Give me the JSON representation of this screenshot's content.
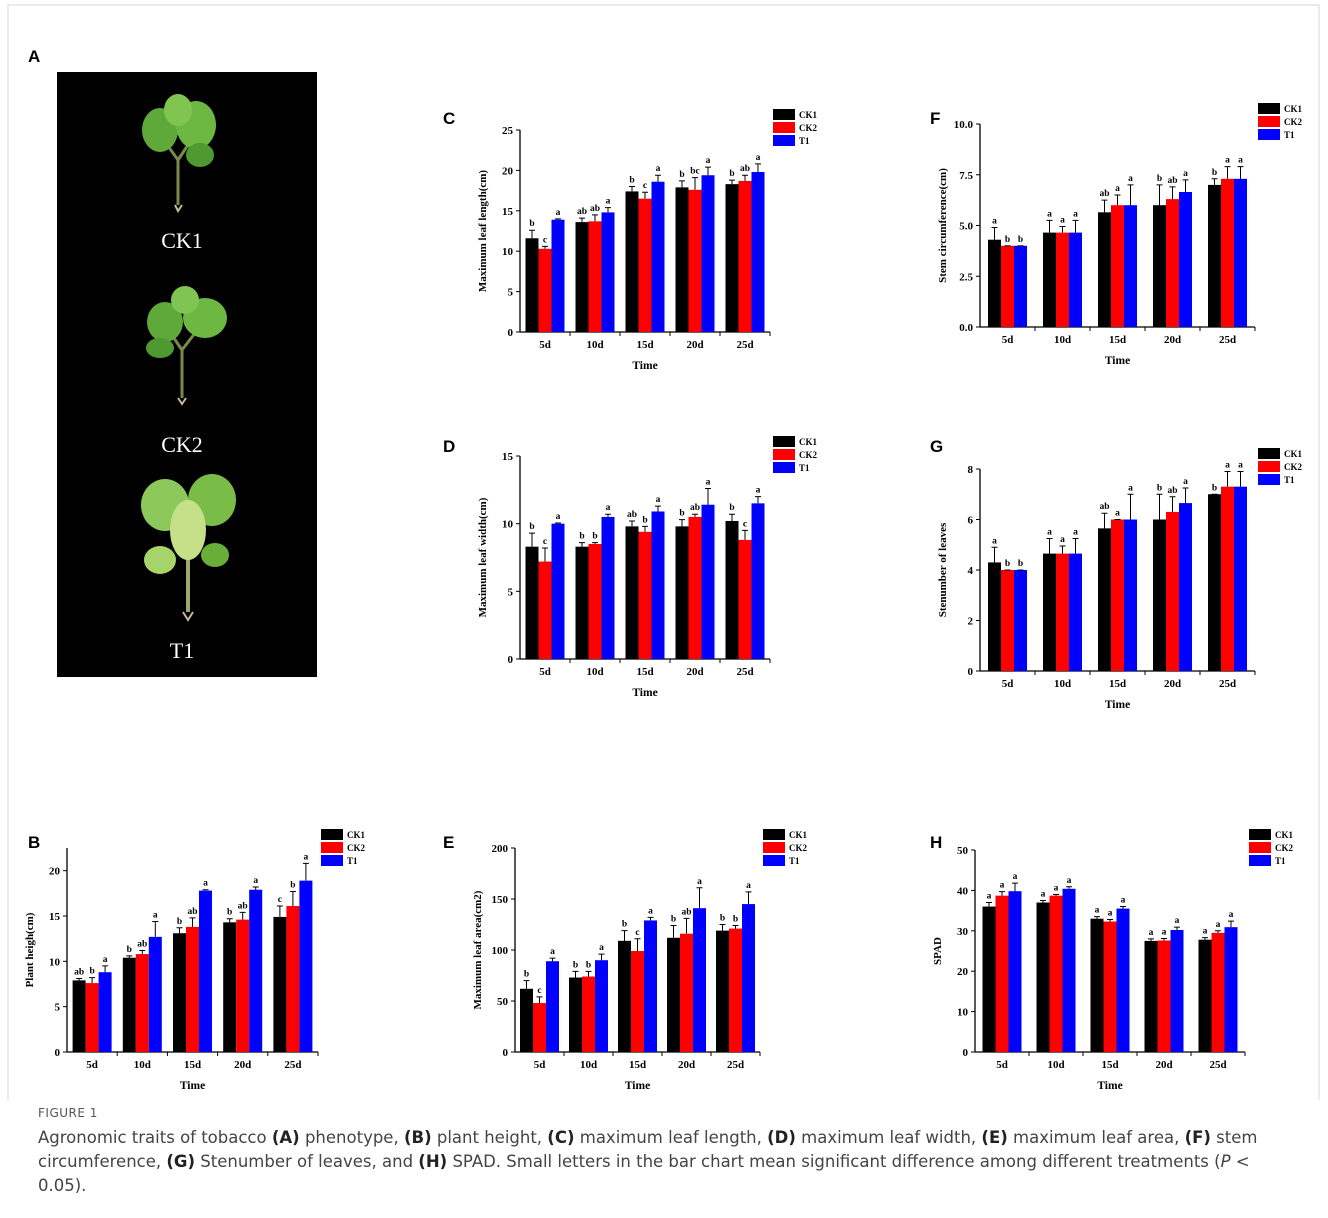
{
  "panel_a": {
    "panel": "A",
    "labels": [
      "CK1",
      "CK2",
      "T1"
    ]
  },
  "chart_data": [
    {
      "type": "bar",
      "panel": "B",
      "y_label": "Plant heigh(cm)",
      "x_label": "Time",
      "categories": [
        "5d",
        "10d",
        "15d",
        "20d",
        "25d"
      ],
      "ylim": [
        0,
        22.5
      ],
      "yticks": [
        0,
        5,
        10,
        15,
        20
      ],
      "series": [
        {
          "name": "CK1",
          "color": "#000000",
          "values": [
            7.9,
            10.4,
            13.1,
            14.3,
            14.9
          ],
          "errors": [
            0.2,
            0.2,
            0.6,
            0.4,
            1.2
          ],
          "letters": [
            "ab",
            "b",
            "b",
            "b",
            "c"
          ]
        },
        {
          "name": "CK2",
          "color": "#ff0000",
          "values": [
            7.6,
            10.8,
            13.8,
            14.6,
            16.1
          ],
          "errors": [
            0.6,
            0.4,
            1.0,
            0.8,
            1.6
          ],
          "letters": [
            "b",
            "ab",
            "ab",
            "ab",
            "b"
          ]
        },
        {
          "name": "T1",
          "color": "#0000ff",
          "values": [
            8.8,
            12.7,
            17.8,
            17.9,
            18.9
          ],
          "errors": [
            0.7,
            1.7,
            0.1,
            0.3,
            1.9
          ],
          "letters": [
            "a",
            "a",
            "a",
            "a",
            "a"
          ]
        }
      ]
    },
    {
      "type": "bar",
      "panel": "C",
      "y_label": "Maximum leaf length(cm)",
      "x_label": "Time",
      "categories": [
        "5d",
        "10d",
        "15d",
        "20d",
        "25d"
      ],
      "ylim": [
        0,
        25
      ],
      "yticks": [
        0,
        5,
        10,
        15,
        20,
        25
      ],
      "series": [
        {
          "name": "CK1",
          "color": "#000000",
          "values": [
            11.6,
            13.6,
            17.4,
            17.9,
            18.3
          ],
          "errors": [
            1.0,
            0.5,
            0.6,
            0.8,
            0.5
          ],
          "letters": [
            "b",
            "ab",
            "b",
            "b",
            "b"
          ]
        },
        {
          "name": "CK2",
          "color": "#ff0000",
          "values": [
            10.3,
            13.7,
            16.5,
            17.6,
            18.7
          ],
          "errors": [
            0.3,
            0.8,
            0.8,
            1.5,
            0.7
          ],
          "letters": [
            "c",
            "ab",
            "c",
            "bc",
            "ab"
          ]
        },
        {
          "name": "T1",
          "color": "#0000ff",
          "values": [
            13.9,
            14.8,
            18.6,
            19.4,
            19.8
          ],
          "errors": [
            0.1,
            0.6,
            0.8,
            1.0,
            1.0
          ],
          "letters": [
            "a",
            "a",
            "a",
            "a",
            "a"
          ]
        }
      ]
    },
    {
      "type": "bar",
      "panel": "D",
      "y_label": "Maximum leaf width(cm)",
      "x_label": "Time",
      "categories": [
        "5d",
        "10d",
        "15d",
        "20d",
        "25d"
      ],
      "ylim": [
        0,
        15
      ],
      "yticks": [
        0,
        5,
        10,
        15
      ],
      "series": [
        {
          "name": "CK1",
          "color": "#000000",
          "values": [
            8.3,
            8.3,
            9.8,
            9.8,
            10.2
          ],
          "errors": [
            1.0,
            0.3,
            0.4,
            0.5,
            0.5
          ],
          "letters": [
            "b",
            "b",
            "ab",
            "b",
            "b"
          ]
        },
        {
          "name": "CK2",
          "color": "#ff0000",
          "values": [
            7.2,
            8.5,
            9.4,
            10.5,
            8.8
          ],
          "errors": [
            1.0,
            0.1,
            0.4,
            0.2,
            0.7
          ],
          "letters": [
            "c",
            "b",
            "b",
            "ab",
            "c"
          ]
        },
        {
          "name": "T1",
          "color": "#0000ff",
          "values": [
            10.0,
            10.5,
            10.9,
            11.4,
            11.5
          ],
          "errors": [
            0.05,
            0.2,
            0.4,
            1.2,
            0.5
          ],
          "letters": [
            "a",
            "a",
            "a",
            "a",
            "a"
          ]
        }
      ]
    },
    {
      "type": "bar",
      "panel": "E",
      "y_label": "Maximum leaf area(cm2)",
      "x_label": "Time",
      "categories": [
        "5d",
        "10d",
        "15d",
        "20d",
        "25d"
      ],
      "ylim": [
        0,
        200
      ],
      "yticks": [
        0,
        50,
        100,
        150,
        200
      ],
      "series": [
        {
          "name": "CK1",
          "color": "#000000",
          "values": [
            62,
            73,
            109,
            112,
            119
          ],
          "errors": [
            8,
            6,
            10,
            12,
            6
          ],
          "letters": [
            "b",
            "b",
            "b",
            "b",
            "b"
          ]
        },
        {
          "name": "CK2",
          "color": "#ff0000",
          "values": [
            48,
            74,
            99,
            116,
            121
          ],
          "errors": [
            6,
            5,
            12,
            15,
            3
          ],
          "letters": [
            "c",
            "b",
            "c",
            "ab",
            "b"
          ]
        },
        {
          "name": "T1",
          "color": "#0000ff",
          "values": [
            89,
            90,
            129,
            141,
            145
          ],
          "errors": [
            3,
            6,
            3,
            20,
            12
          ],
          "letters": [
            "a",
            "a",
            "a",
            "a",
            "a"
          ]
        }
      ]
    },
    {
      "type": "bar",
      "panel": "F",
      "y_label": "Stem circumference(cm)",
      "x_label": "Time",
      "categories": [
        "5d",
        "10d",
        "15d",
        "20d",
        "25d"
      ],
      "ylim": [
        0,
        10
      ],
      "yticks": [
        {
          "value": 0,
          "label": "0.0"
        },
        {
          "value": 2.5,
          "label": "2.5"
        },
        {
          "value": 5,
          "label": "5.0"
        },
        {
          "value": 7.5,
          "label": "7.5"
        },
        {
          "value": 10,
          "label": "10.0"
        }
      ],
      "series": [
        {
          "name": "CK1",
          "color": "#000000",
          "values": [
            4.3,
            4.65,
            5.65,
            6.0,
            7.0
          ],
          "errors": [
            0.6,
            0.6,
            0.6,
            1.0,
            0.3
          ],
          "letters": [
            "a",
            "a",
            "ab",
            "b",
            "b"
          ]
        },
        {
          "name": "CK2",
          "color": "#ff0000",
          "values": [
            4.0,
            4.65,
            6.0,
            6.3,
            7.3
          ],
          "errors": [
            0.0,
            0.3,
            0.5,
            0.6,
            0.6
          ],
          "letters": [
            "b",
            "a",
            "a",
            "ab",
            "a"
          ]
        },
        {
          "name": "T1",
          "color": "#0000ff",
          "values": [
            4.0,
            4.65,
            6.0,
            6.65,
            7.3
          ],
          "errors": [
            0.0,
            0.6,
            1.0,
            0.6,
            0.6
          ],
          "letters": [
            "b",
            "a",
            "a",
            "a",
            "a"
          ]
        }
      ]
    },
    {
      "type": "bar",
      "panel": "G",
      "y_label": "Stenumber of leaves",
      "x_label": "Time",
      "categories": [
        "5d",
        "10d",
        "15d",
        "20d",
        "25d"
      ],
      "ylim": [
        0,
        8
      ],
      "yticks": [
        0,
        2,
        4,
        6,
        8
      ],
      "series": [
        {
          "name": "CK1",
          "color": "#000000",
          "values": [
            4.3,
            4.65,
            5.65,
            6.0,
            7.0
          ],
          "errors": [
            0.6,
            0.6,
            0.6,
            1.0,
            0.0
          ],
          "letters": [
            "a",
            "a",
            "ab",
            "b",
            "b"
          ]
        },
        {
          "name": "CK2",
          "color": "#ff0000",
          "values": [
            4.0,
            4.65,
            6.0,
            6.3,
            7.3
          ],
          "errors": [
            0.0,
            0.3,
            0.0,
            0.6,
            0.6
          ],
          "letters": [
            "b",
            "a",
            "a",
            "ab",
            "a"
          ]
        },
        {
          "name": "T1",
          "color": "#0000ff",
          "values": [
            4.0,
            4.65,
            6.0,
            6.65,
            7.3
          ],
          "errors": [
            0.0,
            0.6,
            1.0,
            0.6,
            0.6
          ],
          "letters": [
            "b",
            "a",
            "a",
            "a",
            "a"
          ]
        }
      ]
    },
    {
      "type": "bar",
      "panel": "H",
      "y_label": "SPAD",
      "x_label": "Time",
      "categories": [
        "5d",
        "10d",
        "15d",
        "20d",
        "25d"
      ],
      "ylim": [
        0,
        50
      ],
      "yticks": [
        0,
        10,
        20,
        30,
        40,
        50
      ],
      "series": [
        {
          "name": "CK1",
          "color": "#000000",
          "values": [
            36,
            37,
            33,
            27.5,
            27.8
          ],
          "errors": [
            1,
            0.5,
            0.5,
            0.5,
            0.5
          ],
          "letters": [
            "a",
            "a",
            "a",
            "a",
            "a"
          ]
        },
        {
          "name": "CK2",
          "color": "#ff0000",
          "values": [
            38.7,
            38.7,
            32.3,
            27.6,
            29.5
          ],
          "errors": [
            1,
            0.3,
            0.5,
            0.5,
            0.5
          ],
          "letters": [
            "a",
            "a",
            "a",
            "a",
            "a"
          ]
        },
        {
          "name": "T1",
          "color": "#0000ff",
          "values": [
            39.8,
            40.4,
            35.5,
            30.2,
            30.9
          ],
          "errors": [
            2,
            0.5,
            0.5,
            0.7,
            1.5
          ],
          "letters": [
            "a",
            "a",
            "a",
            "a",
            "a"
          ]
        }
      ]
    }
  ],
  "caption": {
    "label": "FIGURE 1",
    "parts": [
      {
        "text": "Agronomic traits of tobacco "
      },
      {
        "text": "(A)",
        "bold": true
      },
      {
        "text": " phenotype, "
      },
      {
        "text": "(B)",
        "bold": true
      },
      {
        "text": " plant height, "
      },
      {
        "text": "(C)",
        "bold": true
      },
      {
        "text": " maximum leaf length, "
      },
      {
        "text": "(D)",
        "bold": true
      },
      {
        "text": " maximum leaf width, "
      },
      {
        "text": "(E)",
        "bold": true
      },
      {
        "text": " maximum leaf area, "
      },
      {
        "text": "(F)",
        "bold": true
      },
      {
        "text": " stem circumference, "
      },
      {
        "text": "(G)",
        "bold": true
      },
      {
        "text": " Stenumber of leaves, and "
      },
      {
        "text": "(H)",
        "bold": true
      },
      {
        "text": " SPAD. Small letters in the bar chart mean significant difference among different treatments ("
      },
      {
        "text": "P",
        "italic": true
      },
      {
        "text": " < 0.05)."
      }
    ]
  }
}
